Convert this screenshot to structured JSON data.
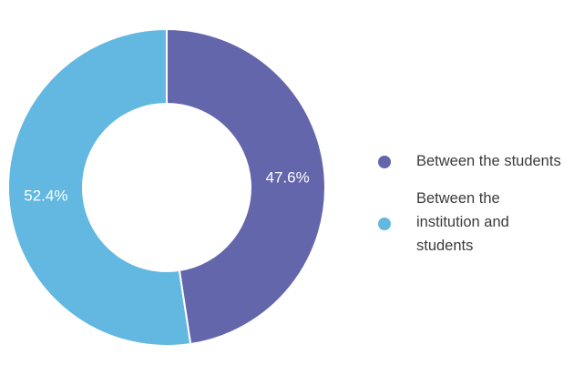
{
  "chart_data": {
    "type": "pie",
    "title": "",
    "categories": [
      "Between the students",
      "Between the institution and students"
    ],
    "values": [
      47.6,
      52.4
    ],
    "labels": [
      "47.6%",
      "52.4%"
    ],
    "colors": [
      "#6466AC",
      "#62B8E0"
    ],
    "style": "donut",
    "legend_position": "right"
  }
}
